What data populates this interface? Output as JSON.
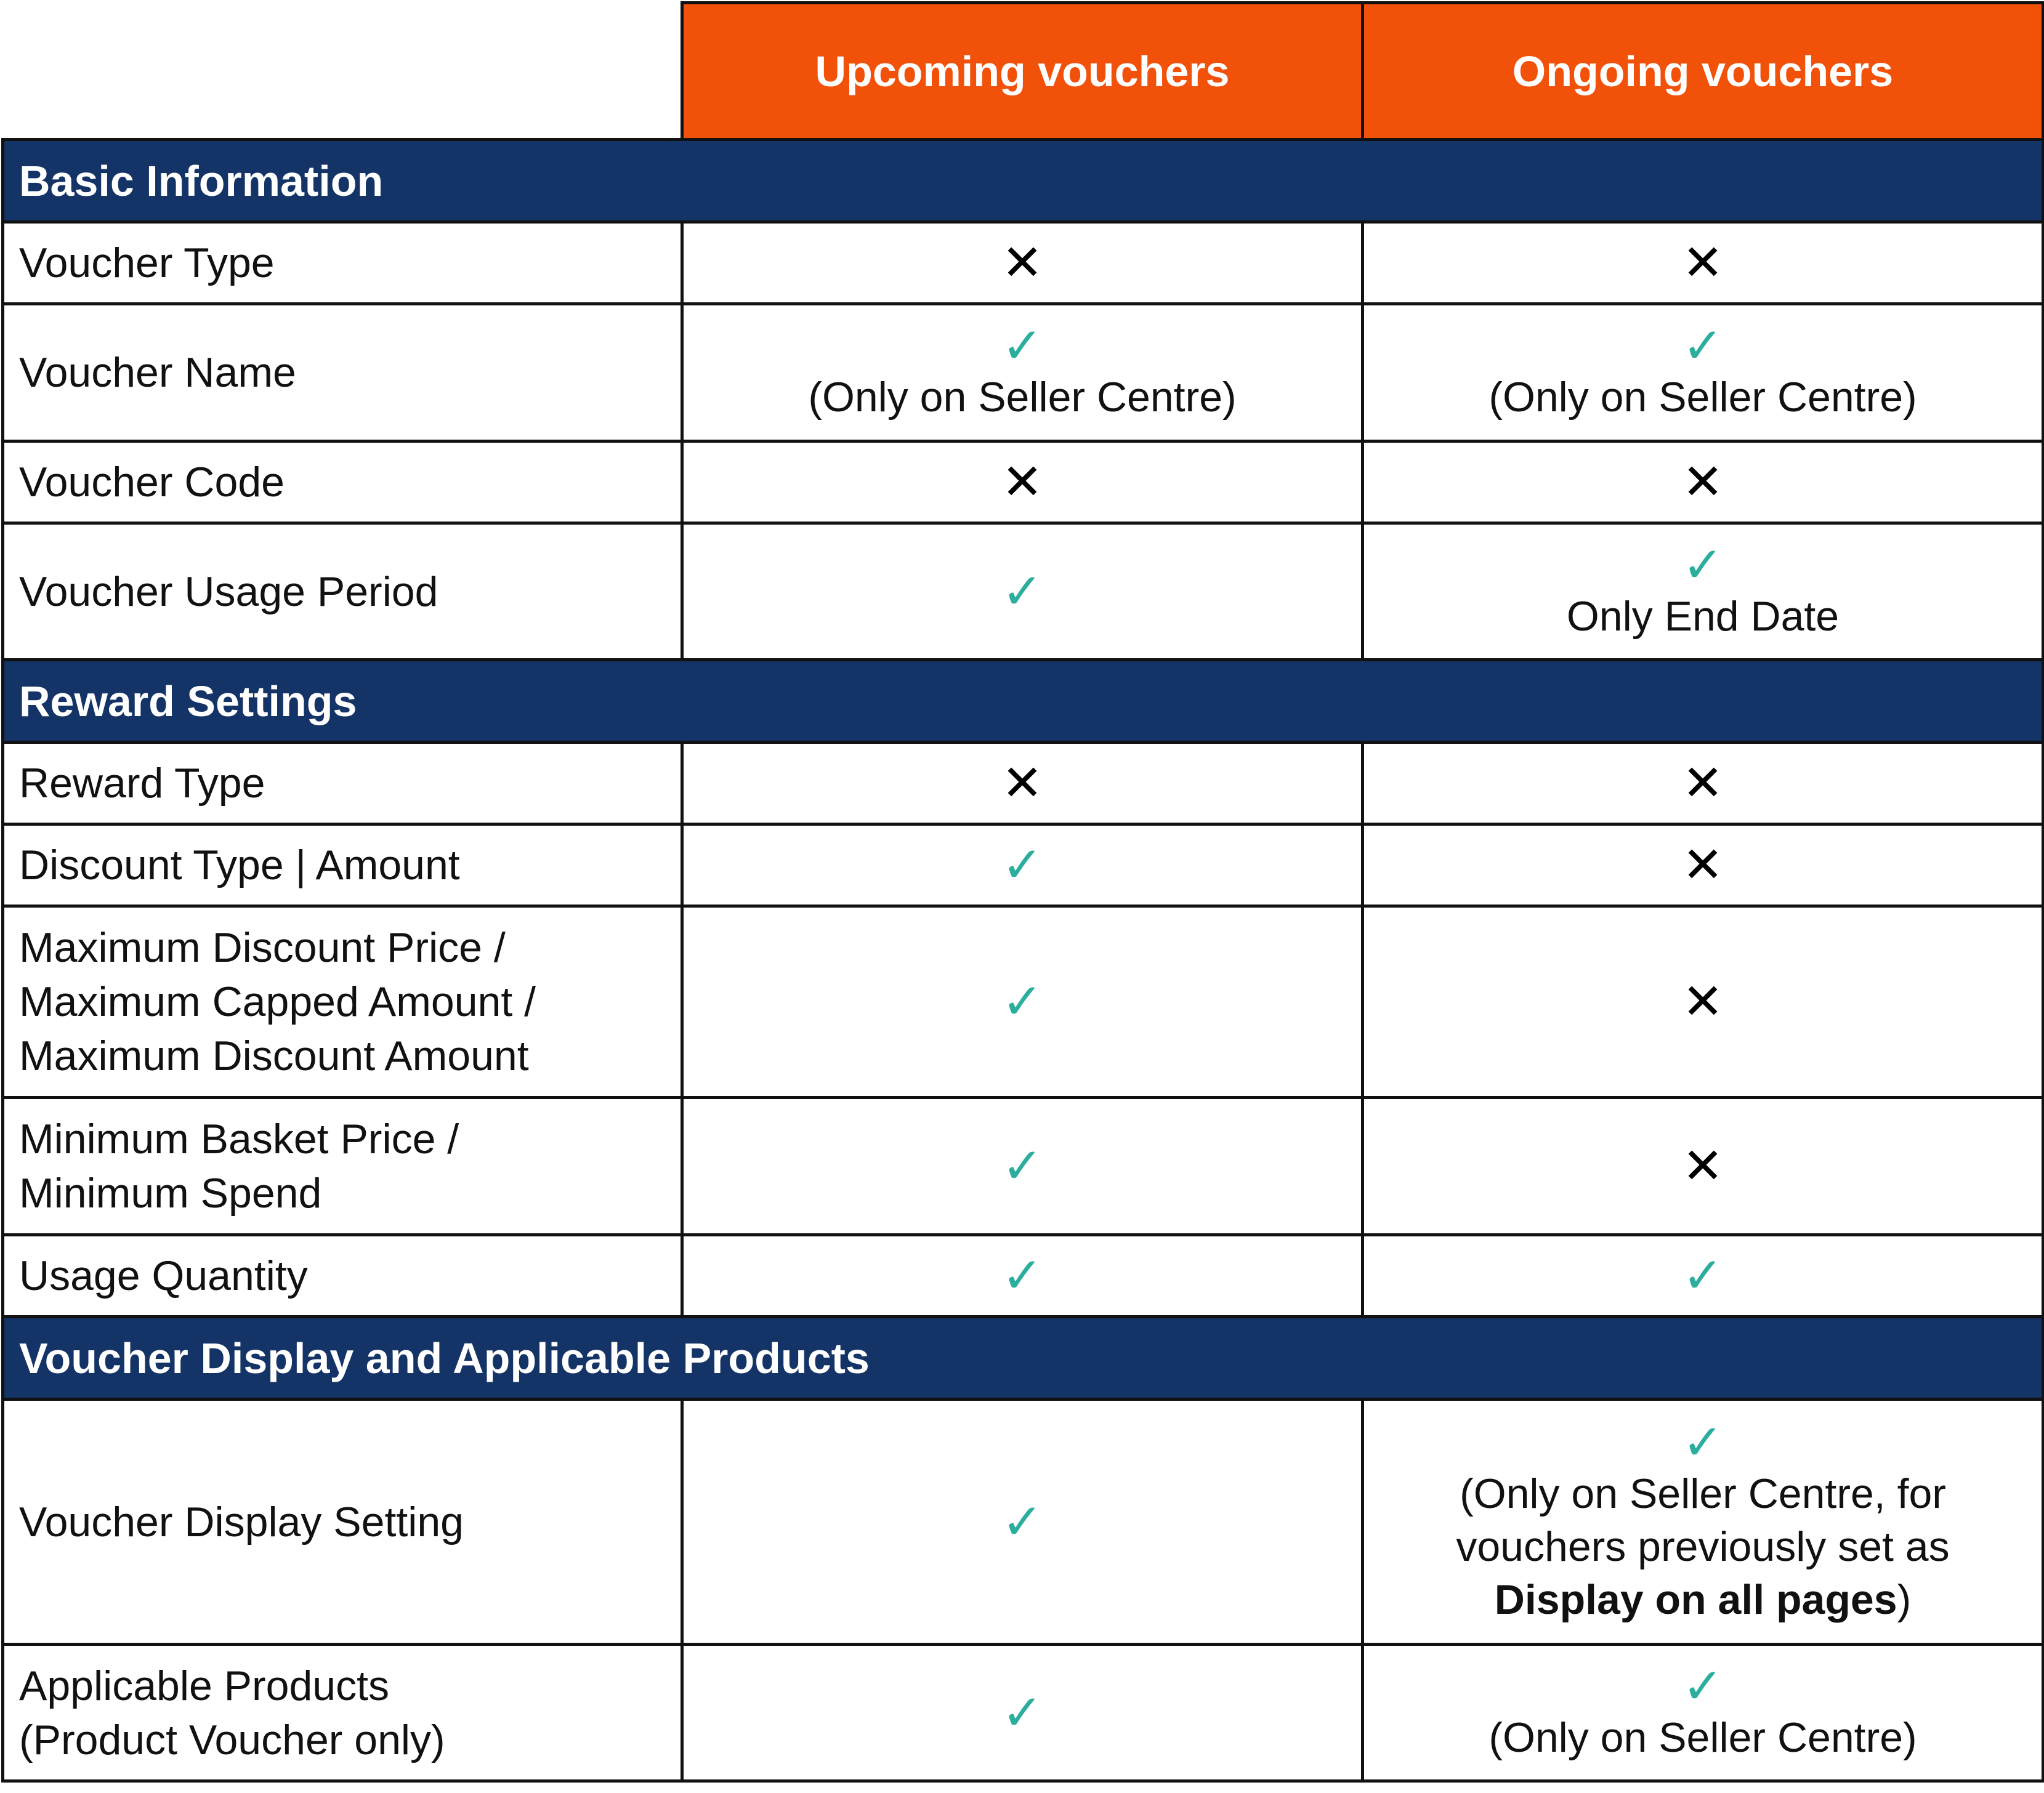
{
  "colors": {
    "header": "#f2510a",
    "section": "#143366",
    "check": "#2bae9e",
    "cross": "#000000"
  },
  "columns": [
    "Upcoming vouchers",
    "Ongoing vouchers"
  ],
  "sections": [
    {
      "title": "Basic Information",
      "rows": [
        {
          "label": "Voucher Type",
          "upcoming": {
            "icon": "cross-icon",
            "note": ""
          },
          "ongoing": {
            "icon": "cross-icon",
            "note": ""
          }
        },
        {
          "label": "Voucher Name",
          "upcoming": {
            "icon": "check-icon",
            "note": "(Only on Seller Centre)"
          },
          "ongoing": {
            "icon": "check-icon",
            "note": "(Only on Seller Centre)"
          }
        },
        {
          "label": "Voucher Code",
          "upcoming": {
            "icon": "cross-icon",
            "note": ""
          },
          "ongoing": {
            "icon": "cross-icon",
            "note": ""
          }
        },
        {
          "label": "Voucher Usage Period",
          "upcoming": {
            "icon": "check-icon",
            "note": ""
          },
          "ongoing": {
            "icon": "check-icon",
            "note": "Only End Date"
          }
        }
      ]
    },
    {
      "title": "Reward Settings",
      "rows": [
        {
          "label": "Reward Type",
          "upcoming": {
            "icon": "cross-icon"
          },
          "ongoing": {
            "icon": "cross-icon"
          }
        },
        {
          "label": "Discount Type | Amount",
          "upcoming": {
            "icon": "check-icon"
          },
          "ongoing": {
            "icon": "cross-icon"
          }
        },
        {
          "label": "Maximum Discount Price /",
          "label2": "Maximum Capped Amount /",
          "label3": "Maximum Discount Amount",
          "upcoming": {
            "icon": "check-icon"
          },
          "ongoing": {
            "icon": "cross-icon"
          }
        },
        {
          "label": "Minimum Basket Price /",
          "label2": "Minimum Spend",
          "upcoming": {
            "icon": "check-icon"
          },
          "ongoing": {
            "icon": "cross-icon"
          }
        },
        {
          "label": "Usage Quantity",
          "upcoming": {
            "icon": "check-icon"
          },
          "ongoing": {
            "icon": "check-icon"
          }
        }
      ]
    },
    {
      "title": "Voucher Display and Applicable Products",
      "rows": [
        {
          "label": "Voucher Display Setting",
          "upcoming": {
            "icon": "check-icon"
          },
          "ongoing": {
            "icon": "check-icon",
            "note": "(Only on Seller Centre, for",
            "note2": "vouchers previously set as",
            "note_bold": "Display on all pages",
            "note_end": ")"
          }
        },
        {
          "label": "Applicable Products",
          "label2": "(Product Voucher only)",
          "upcoming": {
            "icon": "check-icon"
          },
          "ongoing": {
            "icon": "check-icon",
            "note": "(Only on Seller Centre)"
          }
        }
      ]
    }
  ],
  "glyphs": {
    "check": "✓",
    "cross": "✕"
  }
}
